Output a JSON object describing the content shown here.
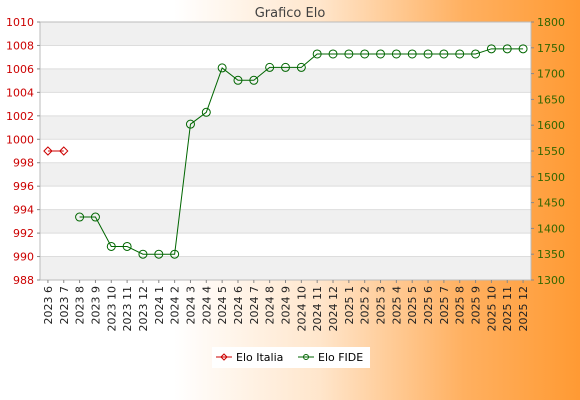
{
  "chart_data": {
    "type": "line",
    "title": "Grafico Elo",
    "categories": [
      "2023 6",
      "2023 7",
      "2023 8",
      "2023 9",
      "2023 10",
      "2023 11",
      "2023 12",
      "2024 1",
      "2024 2",
      "2024 3",
      "2024 4",
      "2024 5",
      "2024 6",
      "2024 7",
      "2024 8",
      "2024 9",
      "2024 10",
      "2024 11",
      "2024 12",
      "2025 1",
      "2025 2",
      "2025 3",
      "2025 4",
      "2025 5",
      "2025 6",
      "2025 7",
      "2025 8",
      "2025 9",
      "2025 10",
      "2025 11",
      "2025 12"
    ],
    "y_left": {
      "ticks": [
        "988",
        "990",
        "992",
        "994",
        "996",
        "998",
        "1000",
        "1002",
        "1004",
        "1006",
        "1008",
        "1010"
      ],
      "range": [
        988,
        1010
      ]
    },
    "y_right": {
      "ticks": [
        "1300",
        "1350",
        "1400",
        "1450",
        "1500",
        "1550",
        "1600",
        "1650",
        "1700",
        "1750",
        "1800"
      ],
      "range": [
        1300,
        1800
      ]
    },
    "grid": true,
    "legend_position": "bottom",
    "series": [
      {
        "name": "Elo Italia",
        "axis": "left",
        "color": "#cc0000",
        "values": [
          999,
          999,
          null,
          null,
          null,
          null,
          null,
          null,
          null,
          null,
          null,
          null,
          null,
          null,
          null,
          null,
          null,
          null,
          null,
          null,
          null,
          null,
          null,
          null,
          null,
          null,
          null,
          null,
          null,
          null,
          null
        ]
      },
      {
        "name": "Elo FIDE",
        "axis": "right",
        "color": "#006600",
        "values": [
          null,
          null,
          1422,
          1422,
          1365,
          1365,
          1350,
          1350,
          1350,
          1602,
          1625,
          1711,
          1687,
          1687,
          1712,
          1712,
          1712,
          1738,
          1738,
          1738,
          1738,
          1738,
          1738,
          1738,
          1738,
          1738,
          1738,
          1738,
          1748,
          1748,
          1748
        ]
      }
    ]
  }
}
